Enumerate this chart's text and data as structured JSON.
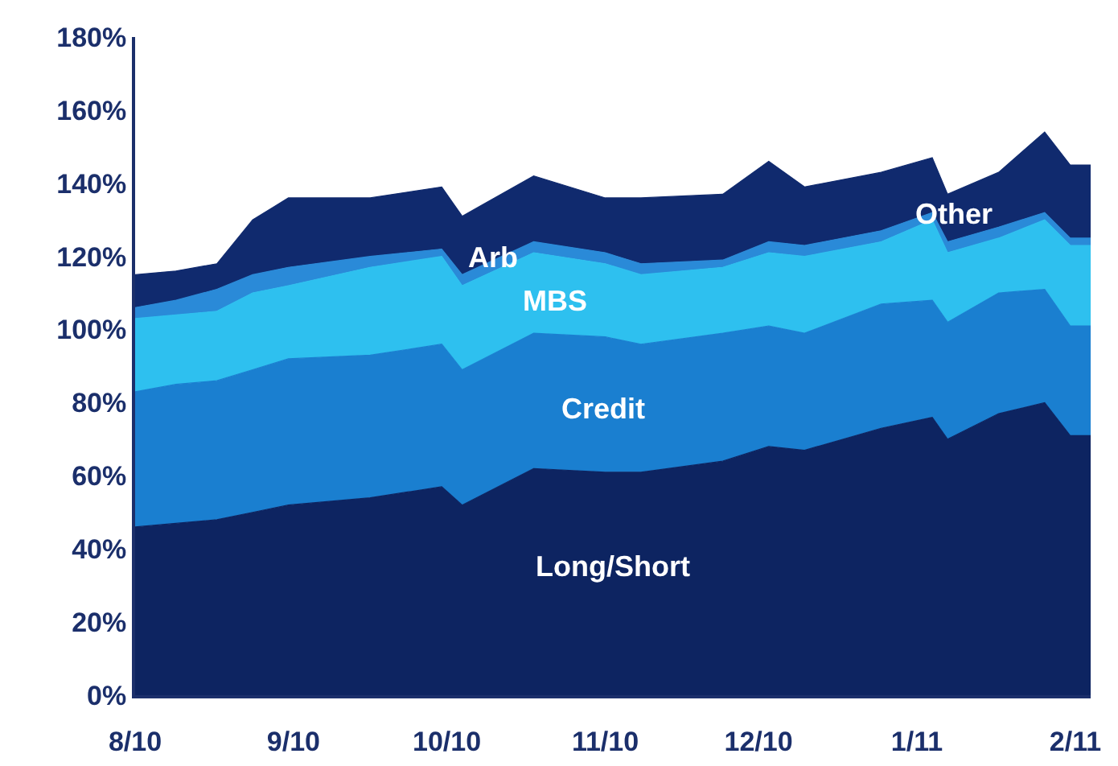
{
  "chart_data": {
    "type": "area",
    "stacked": true,
    "legend": false,
    "grid": false,
    "x": [
      "2010-08-01",
      "2010-08-09",
      "2010-08-17",
      "2010-08-24",
      "2010-08-31",
      "2010-09-16",
      "2010-09-30",
      "2010-10-04",
      "2010-10-18",
      "2010-11-01",
      "2010-11-08",
      "2010-11-24",
      "2010-12-03",
      "2010-12-10",
      "2010-12-25",
      "2011-01-04",
      "2011-01-07",
      "2011-01-17",
      "2011-01-26",
      "2011-01-31",
      "2011-02-04"
    ],
    "series": [
      {
        "name": "Long/Short",
        "color": "#0d2461",
        "values": [
          46,
          47,
          48,
          50,
          52,
          54,
          57,
          52,
          62,
          61,
          61,
          64,
          68,
          67,
          73,
          76,
          70,
          77,
          80,
          71,
          71
        ]
      },
      {
        "name": "Credit",
        "color": "#1a7fd0",
        "values": [
          37,
          38,
          38,
          39,
          40,
          39,
          39,
          37,
          37,
          37,
          35,
          35,
          33,
          32,
          34,
          32,
          32,
          33,
          31,
          30,
          30
        ]
      },
      {
        "name": "MBS",
        "color": "#2ec0ef",
        "values": [
          20,
          19,
          19,
          21,
          20,
          24,
          24,
          23,
          22,
          20,
          19,
          18,
          20,
          21,
          17,
          22,
          19,
          15,
          19,
          22,
          22
        ]
      },
      {
        "name": "Arb",
        "color": "#2a8ad8",
        "values": [
          3,
          4,
          6,
          5,
          5,
          3,
          2,
          3,
          3,
          3,
          3,
          2,
          3,
          3,
          3,
          2,
          3,
          3,
          2,
          2,
          2
        ]
      },
      {
        "name": "Other",
        "color": "#102a6e",
        "values": [
          9,
          8,
          7,
          15,
          19,
          16,
          17,
          16,
          18,
          15,
          18,
          18,
          22,
          16,
          16,
          15,
          13,
          15,
          22,
          20,
          20
        ]
      }
    ],
    "xlim": [
      "2010-08-01",
      "2011-02-04"
    ],
    "xticks": [
      {
        "value": "2010-08-01",
        "label": "8/10"
      },
      {
        "value": "2010-09-01",
        "label": "9/10"
      },
      {
        "value": "2010-10-01",
        "label": "10/10"
      },
      {
        "value": "2010-11-01",
        "label": "11/10"
      },
      {
        "value": "2010-12-01",
        "label": "12/10"
      },
      {
        "value": "2011-01-01",
        "label": "1/11"
      },
      {
        "value": "2011-02-01",
        "label": "2/11"
      }
    ],
    "ylim": [
      0,
      180
    ],
    "yticks": [
      {
        "value": 0,
        "label": "0%"
      },
      {
        "value": 20,
        "label": "20%"
      },
      {
        "value": 40,
        "label": "40%"
      },
      {
        "value": 60,
        "label": "60%"
      },
      {
        "value": 80,
        "label": "80%"
      },
      {
        "value": 100,
        "label": "100%"
      },
      {
        "value": 120,
        "label": "120%"
      },
      {
        "value": 140,
        "label": "140%"
      },
      {
        "value": 160,
        "label": "160%"
      },
      {
        "value": 180,
        "label": "180%"
      }
    ]
  }
}
